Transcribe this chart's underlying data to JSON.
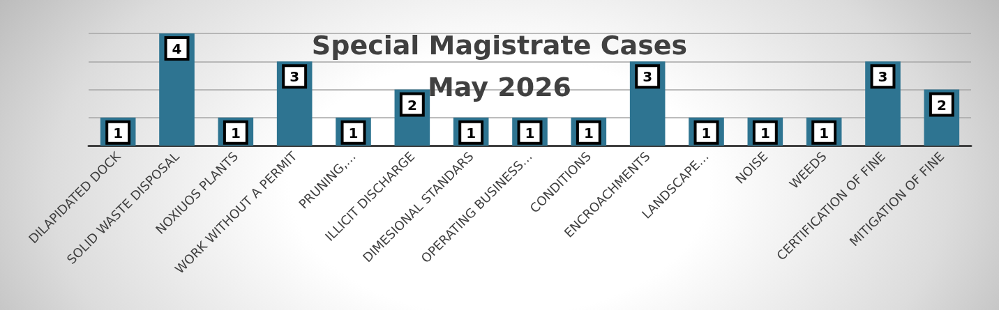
{
  "chart_data": {
    "type": "bar",
    "title": "Special Magistrate Cases\nMay 2026",
    "categories": [
      "DILAPIDATED DOCK",
      "SOLID WASTE DISPOSAL",
      "NOXIUOS PLANTS",
      "WORK WITHOUT A PERMIT",
      "PRUNING,…",
      "ILLICIT DISCHARGE",
      "DIMESIONAL STANDARS",
      "OPERATING BUSINESS…",
      "CONDITIONS",
      "ENCROACHMENTS",
      "LANDSCAPE…",
      "NOISE",
      "WEEDS",
      "CERTIFICATION OF FINE",
      "MITIGATION OF FINE"
    ],
    "values": [
      1,
      4,
      1,
      3,
      1,
      2,
      1,
      1,
      1,
      3,
      1,
      1,
      1,
      3,
      2
    ],
    "color": "#2e7491",
    "ylim": [
      0,
      4
    ],
    "yticks": [
      {
        "value": 0,
        "label": null
      },
      {
        "value": 1,
        "label": null
      },
      {
        "value": 2,
        "label": null
      },
      {
        "value": 3,
        "label": null
      },
      {
        "value": 4,
        "label": null
      }
    ],
    "tick_labels": "x",
    "grid": "y",
    "data_labels": true
  }
}
